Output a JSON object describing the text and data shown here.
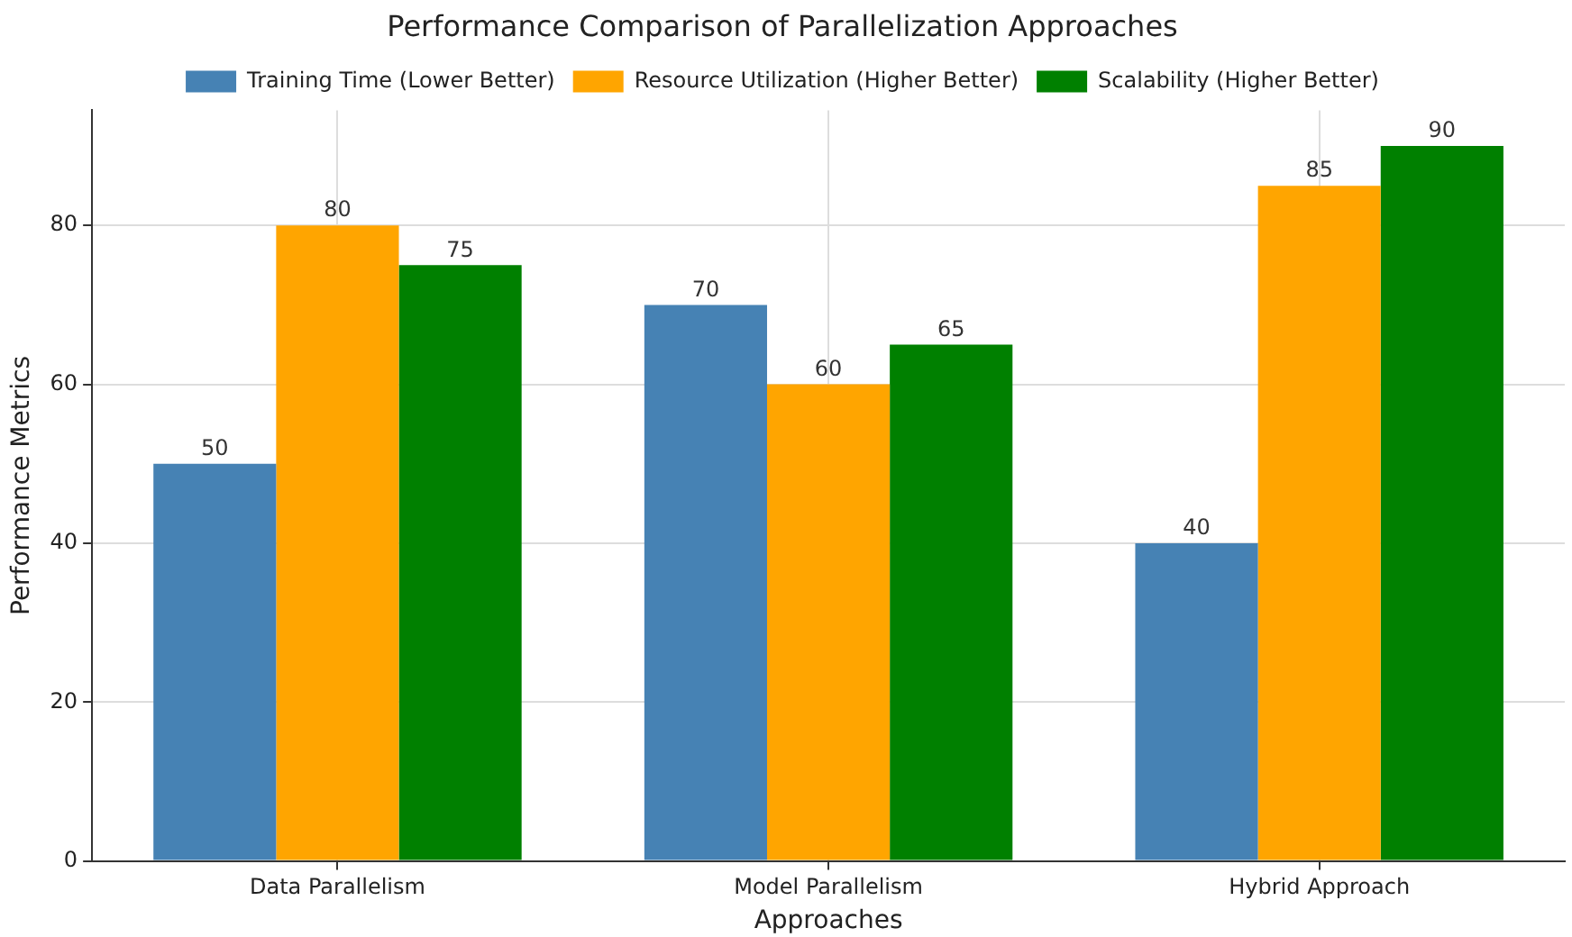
{
  "chart_data": {
    "type": "bar",
    "title": "Performance Comparison of Parallelization Approaches",
    "xlabel": "Approaches",
    "ylabel": "Performance Metrics",
    "categories": [
      "Data Parallelism",
      "Model Parallelism",
      "Hybrid Approach"
    ],
    "series": [
      {
        "name": "Training Time (Lower Better)",
        "color": "#4682b4",
        "values": [
          50,
          70,
          40
        ]
      },
      {
        "name": "Resource Utilization (Higher Better)",
        "color": "#ffa500",
        "values": [
          80,
          60,
          85
        ]
      },
      {
        "name": "Scalability (Higher Better)",
        "color": "#008000",
        "values": [
          75,
          65,
          90
        ]
      }
    ],
    "ylim": [
      0,
      94.5
    ],
    "yticks": [
      0,
      20,
      40,
      60,
      80
    ],
    "grid": true,
    "legend": "top",
    "data_labels": true
  }
}
